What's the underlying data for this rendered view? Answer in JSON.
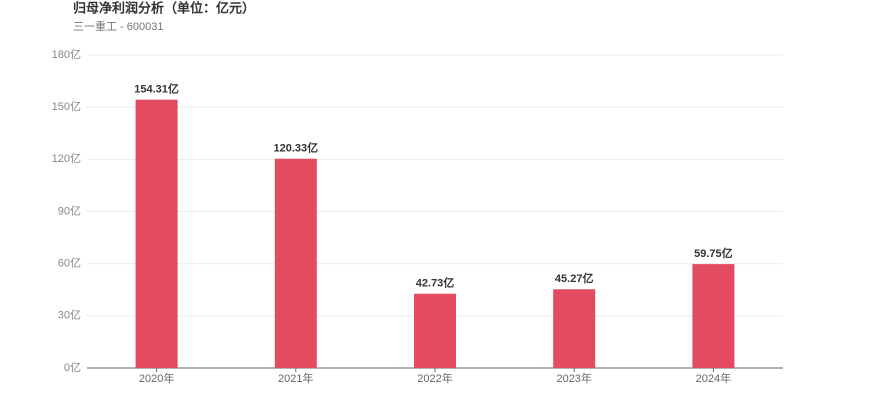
{
  "chart_data": {
    "type": "bar",
    "title": "归母净利润分析（单位：亿元）",
    "subtitle": "三一重工 - 600031",
    "categories": [
      "2020年",
      "2021年",
      "2022年",
      "2023年",
      "2024年"
    ],
    "values": [
      154.31,
      120.33,
      42.73,
      45.27,
      59.75
    ],
    "value_labels": [
      "154.31亿",
      "120.33亿",
      "42.73亿",
      "45.27亿",
      "59.75亿"
    ],
    "color": "#e34b61",
    "ylim": [
      0,
      180
    ],
    "yticks": [
      {
        "value": 0,
        "label": "0亿"
      },
      {
        "value": 30,
        "label": "30亿"
      },
      {
        "value": 60,
        "label": "60亿"
      },
      {
        "value": 90,
        "label": "90亿"
      },
      {
        "value": 120,
        "label": "120亿"
      },
      {
        "value": 150,
        "label": "150亿"
      },
      {
        "value": 180,
        "label": "180亿"
      }
    ],
    "grid": true
  }
}
